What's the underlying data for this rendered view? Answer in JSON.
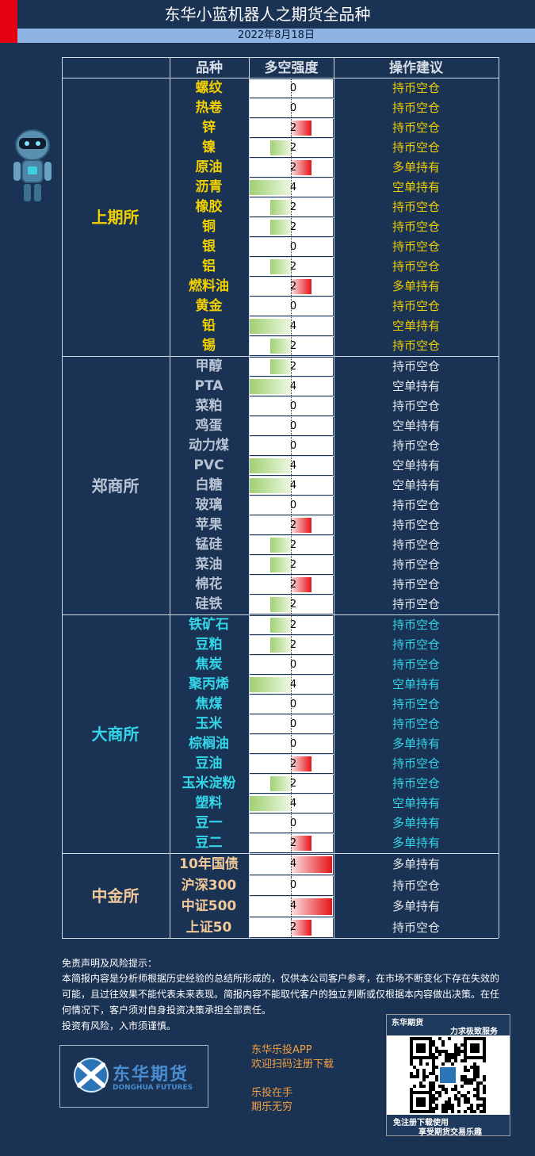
{
  "header": {
    "title": "东华小蓝机器人之期货全品种",
    "date": "2022年8月18日"
  },
  "table": {
    "headers": [
      "品种",
      "多空强度",
      "操作建议"
    ],
    "groups": [
      {
        "exchange": "上期所",
        "name_color": "#f0d000",
        "advice_color": "#f0d000",
        "rows": [
          {
            "name": "螺纹",
            "strength": 0,
            "advice": "持币空仓"
          },
          {
            "name": "热卷",
            "strength": 0,
            "advice": "持币空仓"
          },
          {
            "name": "锌",
            "strength": 2,
            "advice": "持币空仓"
          },
          {
            "name": "镍",
            "strength": -2,
            "advice": "持币空仓"
          },
          {
            "name": "原油",
            "strength": 2,
            "advice": "多单持有"
          },
          {
            "name": "沥青",
            "strength": -4,
            "advice": "空单持有"
          },
          {
            "name": "橡胶",
            "strength": -2,
            "advice": "持币空仓"
          },
          {
            "name": "铜",
            "strength": -2,
            "advice": "持币空仓"
          },
          {
            "name": "银",
            "strength": 0,
            "advice": "持币空仓"
          },
          {
            "name": "铝",
            "strength": -2,
            "advice": "持币空仓"
          },
          {
            "name": "燃料油",
            "strength": 2,
            "advice": "多单持有"
          },
          {
            "name": "黄金",
            "strength": 0,
            "advice": "持币空仓"
          },
          {
            "name": "铅",
            "strength": -4,
            "advice": "空单持有"
          },
          {
            "name": "锡",
            "strength": -2,
            "advice": "持币空仓"
          }
        ]
      },
      {
        "exchange": "郑商所",
        "name_color": "#b8c3d3",
        "advice_color": "#e8ecf2",
        "rows": [
          {
            "name": "甲醇",
            "strength": -2,
            "advice": "持币空仓"
          },
          {
            "name": "PTA",
            "strength": -4,
            "advice": "空单持有"
          },
          {
            "name": "菜粕",
            "strength": 0,
            "advice": "持币空仓"
          },
          {
            "name": "鸡蛋",
            "strength": 0,
            "advice": "空单持有"
          },
          {
            "name": "动力煤",
            "strength": 0,
            "advice": "持币空仓"
          },
          {
            "name": "PVC",
            "strength": -4,
            "advice": "空单持有"
          },
          {
            "name": "白糖",
            "strength": -4,
            "advice": "空单持有"
          },
          {
            "name": "玻璃",
            "strength": 0,
            "advice": "持币空仓"
          },
          {
            "name": "苹果",
            "strength": 2,
            "advice": "持币空仓"
          },
          {
            "name": "锰硅",
            "strength": -2,
            "advice": "持币空仓"
          },
          {
            "name": "菜油",
            "strength": -2,
            "advice": "持币空仓"
          },
          {
            "name": "棉花",
            "strength": 2,
            "advice": "持币空仓"
          },
          {
            "name": "硅铁",
            "strength": -2,
            "advice": "持币空仓"
          }
        ]
      },
      {
        "exchange": "大商所",
        "name_color": "#33d6e8",
        "advice_color": "#33d6e8",
        "rows": [
          {
            "name": "铁矿石",
            "strength": -2,
            "advice": "持币空仓"
          },
          {
            "name": "豆粕",
            "strength": -2,
            "advice": "持币空仓"
          },
          {
            "name": "焦炭",
            "strength": 0,
            "advice": "持币空仓"
          },
          {
            "name": "聚丙烯",
            "strength": -4,
            "advice": "空单持有"
          },
          {
            "name": "焦煤",
            "strength": 0,
            "advice": "持币空仓"
          },
          {
            "name": "玉米",
            "strength": 0,
            "advice": "持币空仓"
          },
          {
            "name": "棕榈油",
            "strength": 0,
            "advice": "多单持有"
          },
          {
            "name": "豆油",
            "strength": 2,
            "advice": "持币空仓"
          },
          {
            "name": "玉米淀粉",
            "strength": -2,
            "advice": "持币空仓"
          },
          {
            "name": "塑料",
            "strength": -4,
            "advice": "空单持有"
          },
          {
            "name": "豆一",
            "strength": 0,
            "advice": "多单持有"
          },
          {
            "name": "豆二",
            "strength": 2,
            "advice": "多单持有"
          }
        ]
      },
      {
        "exchange": "中金所",
        "name_color": "#f1c99a",
        "advice_color": "#e8ecf2",
        "rows": [
          {
            "name": "10年国债",
            "strength": 4,
            "advice": "多单持有"
          },
          {
            "name": "沪深300",
            "strength": 0,
            "advice": "持币空仓"
          },
          {
            "name": "中证500",
            "strength": 4,
            "advice": "多单持有"
          },
          {
            "name": "上证50",
            "strength": 2,
            "advice": "持币空仓"
          }
        ]
      }
    ]
  },
  "disclaimer": {
    "heading": "免责声明及风险提示：",
    "body": "本简报内容是分析师根据历史经验的总结所形成的，仅供本公司客户参考，在市场不断变化下存在失效的可能，且过往效果不能代表未来表现。简报内容不能取代客户的独立判断或仅根据本内容做出决策。在任何情况下，客户须对自身投资决策承担全部责任。",
    "risk": "投资有风险，入市须谨慎。"
  },
  "logo": {
    "cn": "东华期货",
    "en": "DONGHUA FUTURES"
  },
  "promo": {
    "line1": "东华乐投APP",
    "line2": "欢迎扫码注册下载",
    "line3": "乐投在手",
    "line4": "期乐无穷"
  },
  "qr": {
    "top1": "东华期货",
    "top2": "力求极致服务",
    "bottom1": "免注册下载使用",
    "bottom2": "享受期货交易乐趣"
  },
  "colors": {
    "background": "#1a3253",
    "accent_red": "#e50012",
    "date_bar": "#8db4e2"
  }
}
